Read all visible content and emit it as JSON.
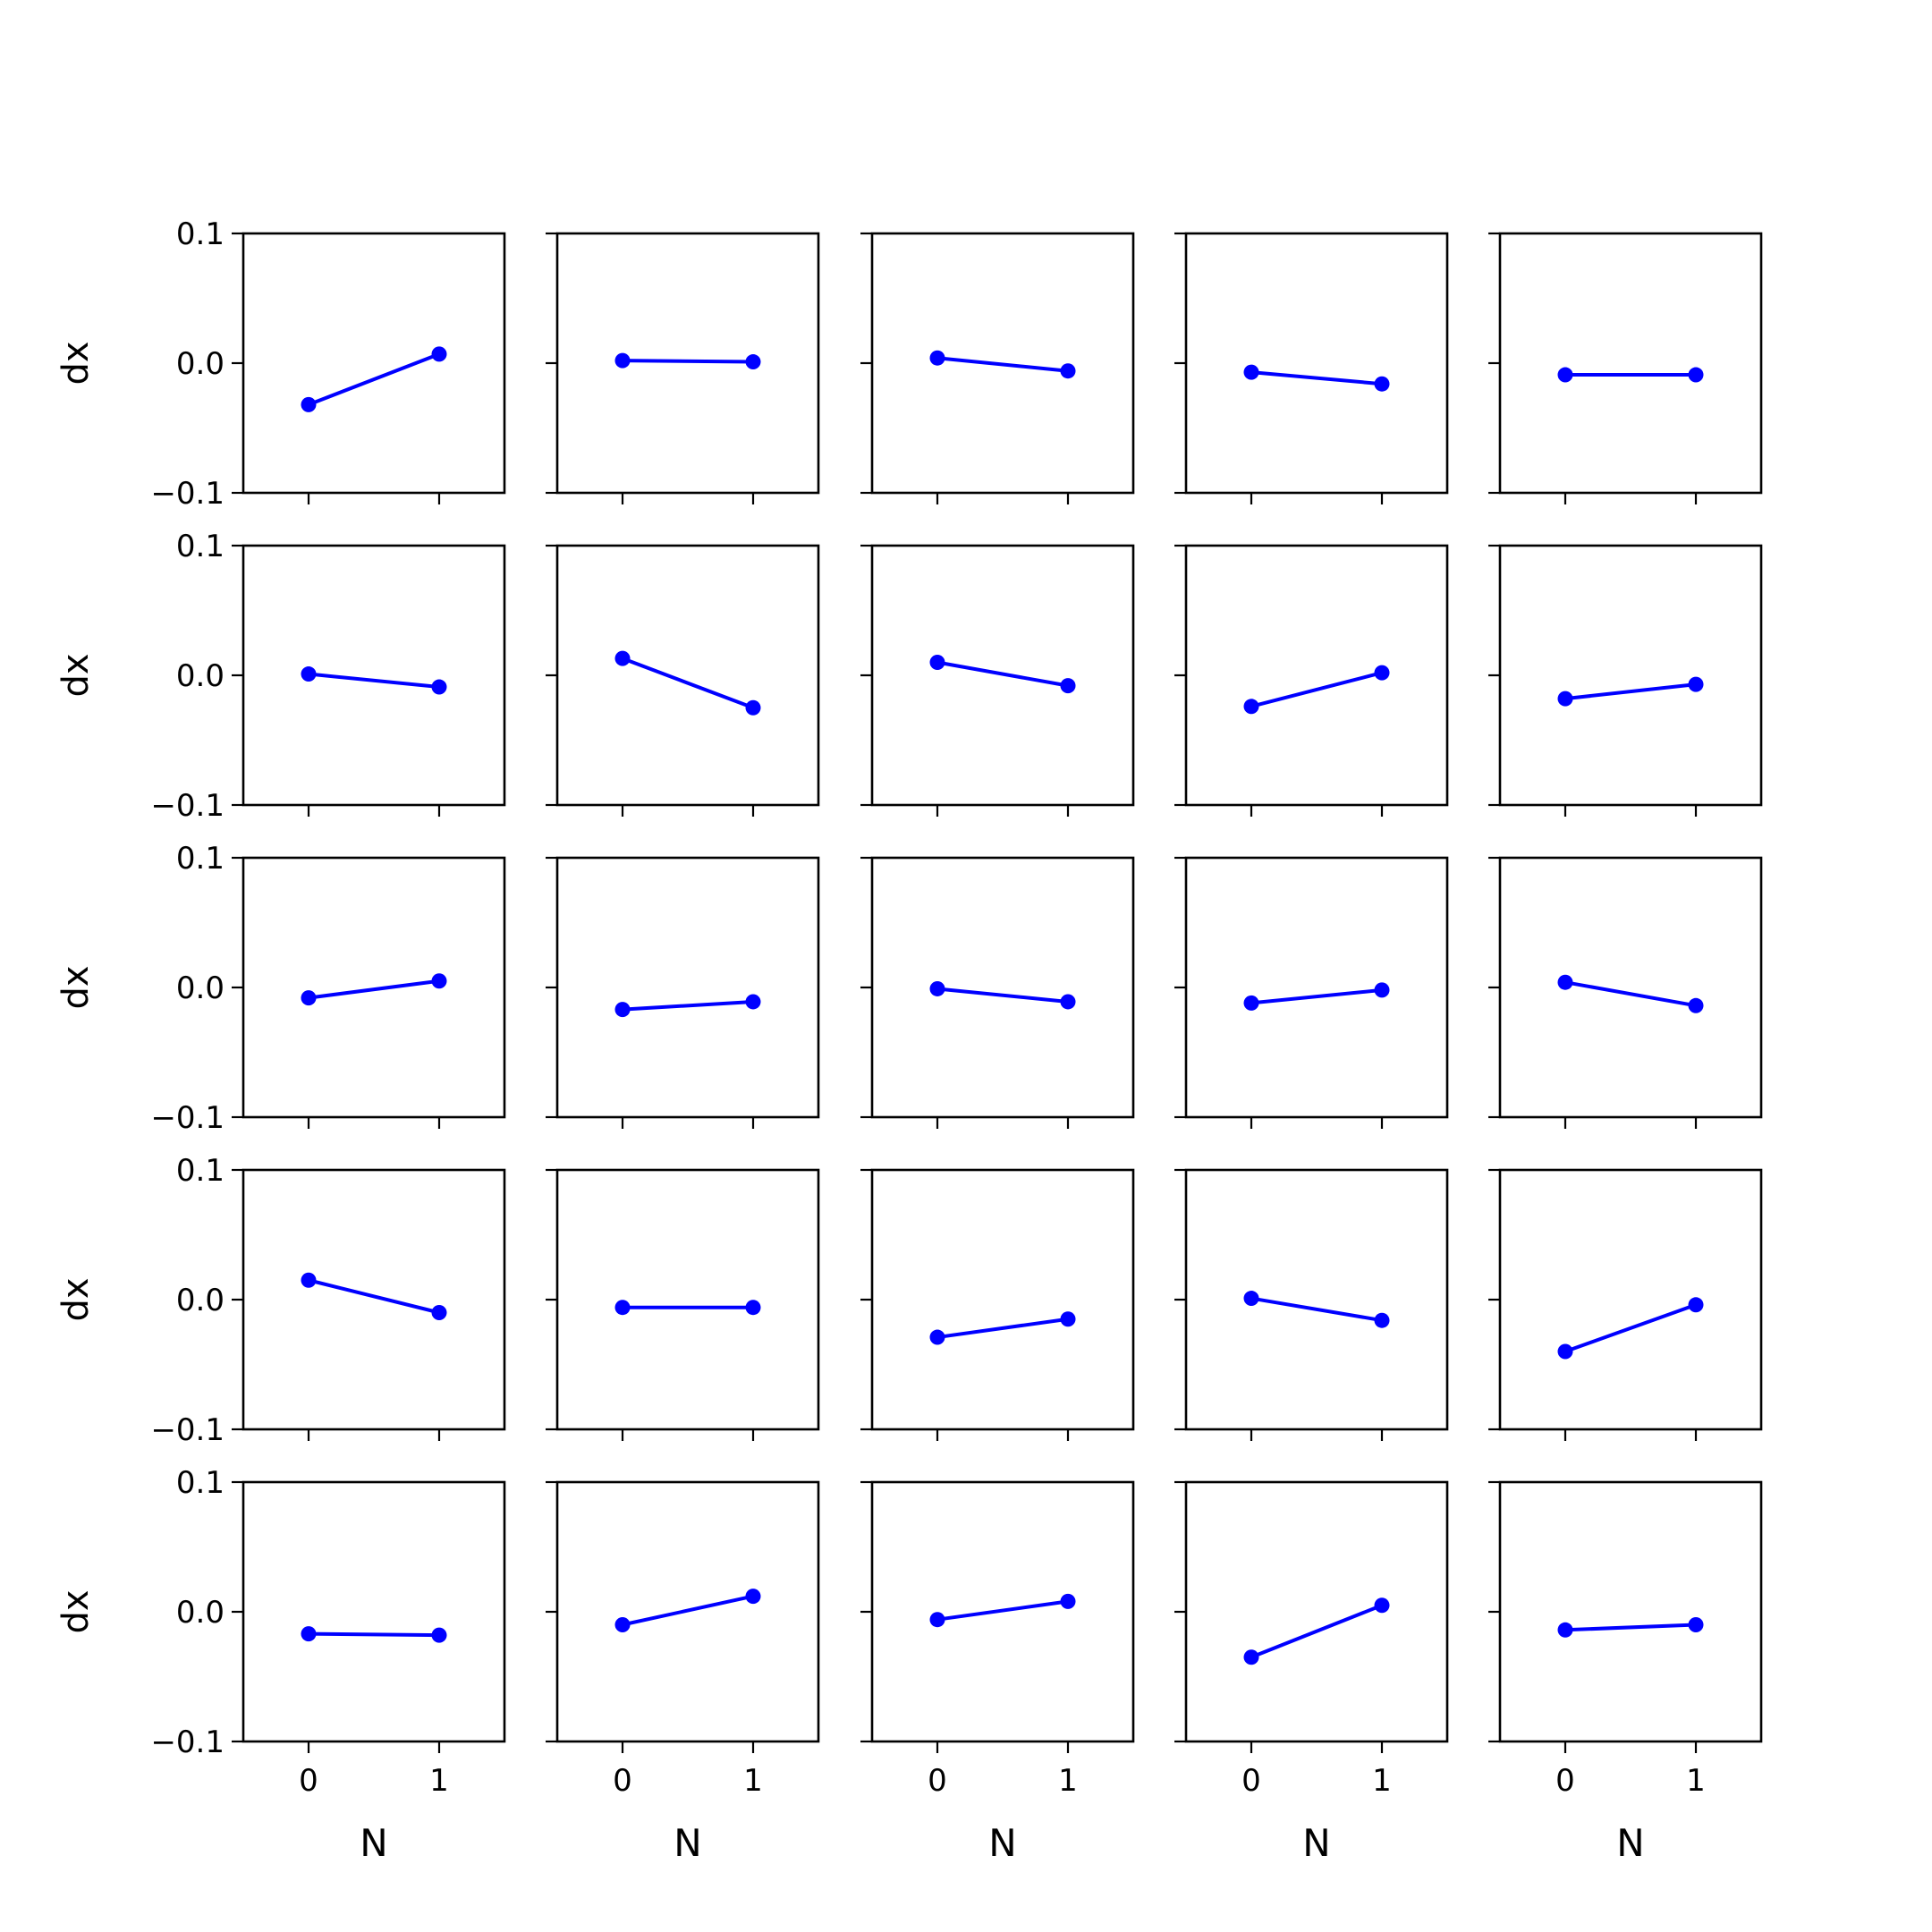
{
  "figure": {
    "rows": 5,
    "cols": 5,
    "line_color": "#0000ff",
    "axis_color": "#000000",
    "background": "#ffffff"
  },
  "chart_data": {
    "type": "line",
    "layout": "5x5 grid of small multiples, shared x and y axes",
    "xlabel": "N",
    "ylabel": "dx",
    "xticks": [
      0,
      1
    ],
    "xtick_labels": [
      "0",
      "1"
    ],
    "yticks": [
      -0.1,
      0.0,
      0.1
    ],
    "ytick_labels": [
      "−0.1",
      "0.0",
      "0.1"
    ],
    "xlim": [
      -0.5,
      1.5
    ],
    "ylim": [
      -0.1,
      0.1
    ],
    "grid": false,
    "legend": "none",
    "marker": "circle",
    "panels": [
      {
        "row": 0,
        "col": 0,
        "x": [
          0,
          1
        ],
        "y": [
          -0.032,
          0.007
        ]
      },
      {
        "row": 0,
        "col": 1,
        "x": [
          0,
          1
        ],
        "y": [
          0.002,
          0.001
        ]
      },
      {
        "row": 0,
        "col": 2,
        "x": [
          0,
          1
        ],
        "y": [
          0.004,
          -0.006
        ]
      },
      {
        "row": 0,
        "col": 3,
        "x": [
          0,
          1
        ],
        "y": [
          -0.007,
          -0.016
        ]
      },
      {
        "row": 0,
        "col": 4,
        "x": [
          0,
          1
        ],
        "y": [
          -0.009,
          -0.009
        ]
      },
      {
        "row": 1,
        "col": 0,
        "x": [
          0,
          1
        ],
        "y": [
          0.001,
          -0.009
        ]
      },
      {
        "row": 1,
        "col": 1,
        "x": [
          0,
          1
        ],
        "y": [
          0.013,
          -0.025
        ]
      },
      {
        "row": 1,
        "col": 2,
        "x": [
          0,
          1
        ],
        "y": [
          0.01,
          -0.008
        ]
      },
      {
        "row": 1,
        "col": 3,
        "x": [
          0,
          1
        ],
        "y": [
          -0.024,
          0.002
        ]
      },
      {
        "row": 1,
        "col": 4,
        "x": [
          0,
          1
        ],
        "y": [
          -0.018,
          -0.007
        ]
      },
      {
        "row": 2,
        "col": 0,
        "x": [
          0,
          1
        ],
        "y": [
          -0.008,
          0.005
        ]
      },
      {
        "row": 2,
        "col": 1,
        "x": [
          0,
          1
        ],
        "y": [
          -0.017,
          -0.011
        ]
      },
      {
        "row": 2,
        "col": 2,
        "x": [
          0,
          1
        ],
        "y": [
          -0.001,
          -0.011
        ]
      },
      {
        "row": 2,
        "col": 3,
        "x": [
          0,
          1
        ],
        "y": [
          -0.012,
          -0.002
        ]
      },
      {
        "row": 2,
        "col": 4,
        "x": [
          0,
          1
        ],
        "y": [
          0.004,
          -0.014
        ]
      },
      {
        "row": 3,
        "col": 0,
        "x": [
          0,
          1
        ],
        "y": [
          0.015,
          -0.01
        ]
      },
      {
        "row": 3,
        "col": 1,
        "x": [
          0,
          1
        ],
        "y": [
          -0.006,
          -0.006
        ]
      },
      {
        "row": 3,
        "col": 2,
        "x": [
          0,
          1
        ],
        "y": [
          -0.029,
          -0.015
        ]
      },
      {
        "row": 3,
        "col": 3,
        "x": [
          0,
          1
        ],
        "y": [
          0.001,
          -0.016
        ]
      },
      {
        "row": 3,
        "col": 4,
        "x": [
          0,
          1
        ],
        "y": [
          -0.04,
          -0.004
        ]
      },
      {
        "row": 4,
        "col": 0,
        "x": [
          0,
          1
        ],
        "y": [
          -0.017,
          -0.018
        ]
      },
      {
        "row": 4,
        "col": 1,
        "x": [
          0,
          1
        ],
        "y": [
          -0.01,
          0.012
        ]
      },
      {
        "row": 4,
        "col": 2,
        "x": [
          0,
          1
        ],
        "y": [
          -0.006,
          0.008
        ]
      },
      {
        "row": 4,
        "col": 3,
        "x": [
          0,
          1
        ],
        "y": [
          -0.035,
          0.005
        ]
      },
      {
        "row": 4,
        "col": 4,
        "x": [
          0,
          1
        ],
        "y": [
          -0.014,
          -0.01
        ]
      }
    ]
  }
}
